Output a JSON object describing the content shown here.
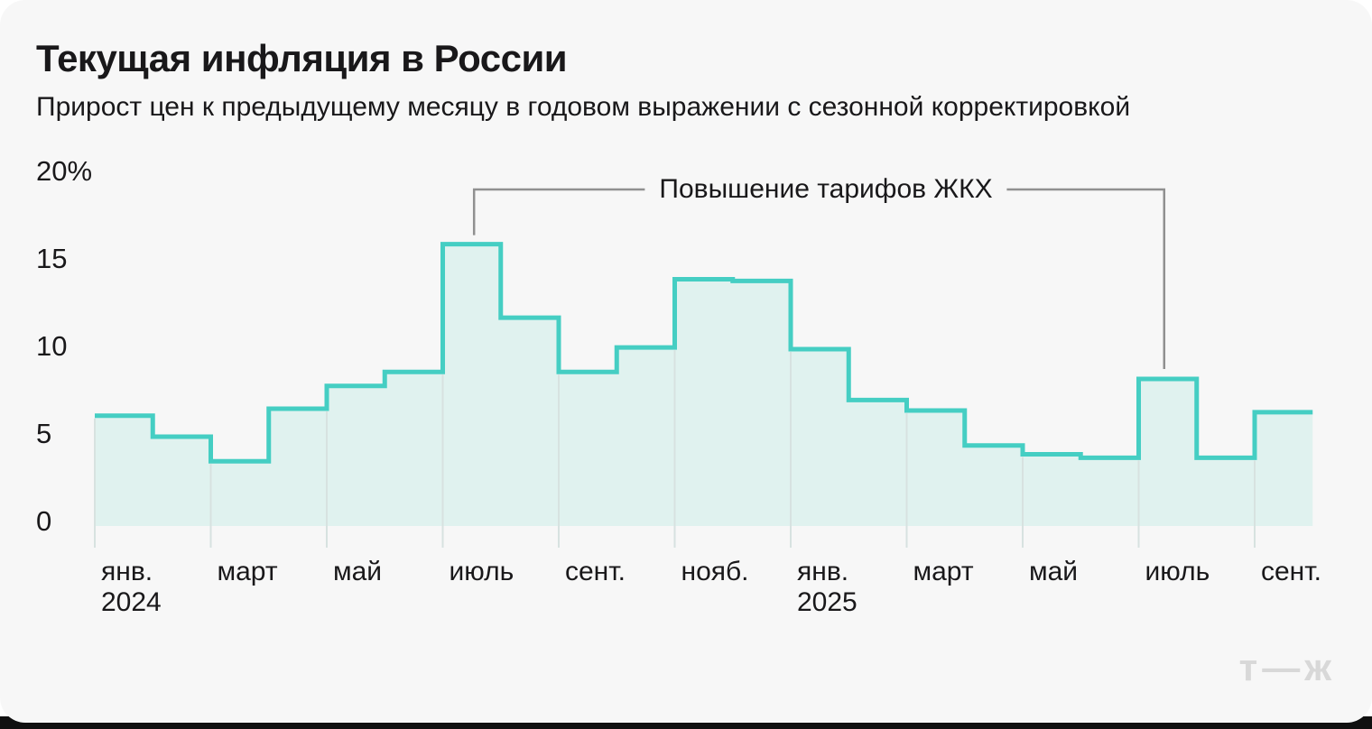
{
  "page": {
    "title": "Текущая инфляция в России",
    "subtitle": "Прирост цен к предыдущему месяцу в годовом выражении с сезонной корректировкой",
    "brand_logo": "т—ж"
  },
  "chart_data": {
    "type": "area",
    "variant": "step",
    "title": "Текущая инфляция в России",
    "subtitle": "Прирост цен к предыдущему месяцу в годовом выражении с сезонной корректировкой",
    "unit": "%",
    "ylim": [
      0,
      20
    ],
    "grid": "vertical-every-2-months",
    "legend": "none",
    "x": [
      "янв. 2024",
      "февр. 2024",
      "март 2024",
      "апр. 2024",
      "май 2024",
      "июнь 2024",
      "июль 2024",
      "авг. 2024",
      "сент. 2024",
      "окт. 2024",
      "нояб. 2024",
      "дек. 2024",
      "янв. 2025",
      "февр. 2025",
      "март 2025",
      "апр. 2025",
      "май 2025",
      "июнь 2025",
      "июль 2025",
      "авг. 2025",
      "сент. 2025"
    ],
    "values": [
      6.3,
      5.1,
      3.7,
      6.7,
      8.0,
      8.8,
      16.1,
      11.9,
      8.8,
      10.2,
      14.1,
      14.0,
      10.1,
      7.2,
      6.6,
      4.6,
      4.1,
      3.9,
      8.4,
      3.9,
      6.5
    ],
    "yticks": [
      {
        "value": 20,
        "label": "20%"
      },
      {
        "value": 15,
        "label": "15"
      },
      {
        "value": 10,
        "label": "10"
      },
      {
        "value": 5,
        "label": "5"
      },
      {
        "value": 0,
        "label": "0"
      }
    ],
    "xticks": [
      {
        "index": 0,
        "label": "янв.",
        "year": "2024"
      },
      {
        "index": 2,
        "label": "март"
      },
      {
        "index": 4,
        "label": "май"
      },
      {
        "index": 6,
        "label": "июль"
      },
      {
        "index": 8,
        "label": "сент."
      },
      {
        "index": 10,
        "label": "нояб."
      },
      {
        "index": 12,
        "label": "янв.",
        "year": "2025"
      },
      {
        "index": 14,
        "label": "март"
      },
      {
        "index": 16,
        "label": "май"
      },
      {
        "index": 18,
        "label": "июль"
      },
      {
        "index": 20,
        "label": "сент."
      }
    ],
    "annotation": {
      "text": "Повышение тарифов ЖКХ",
      "target_months": [
        "июль 2024",
        "июль 2025"
      ],
      "target_indices": [
        6,
        18
      ]
    },
    "colors": {
      "line": "#45CEC3",
      "fill": "#E0F2EF",
      "grid_line": "#D7E2E0",
      "annotation_line": "#909090",
      "text": "#19181A",
      "background": "#F7F7F7",
      "logo": "#D8D8D8"
    }
  }
}
